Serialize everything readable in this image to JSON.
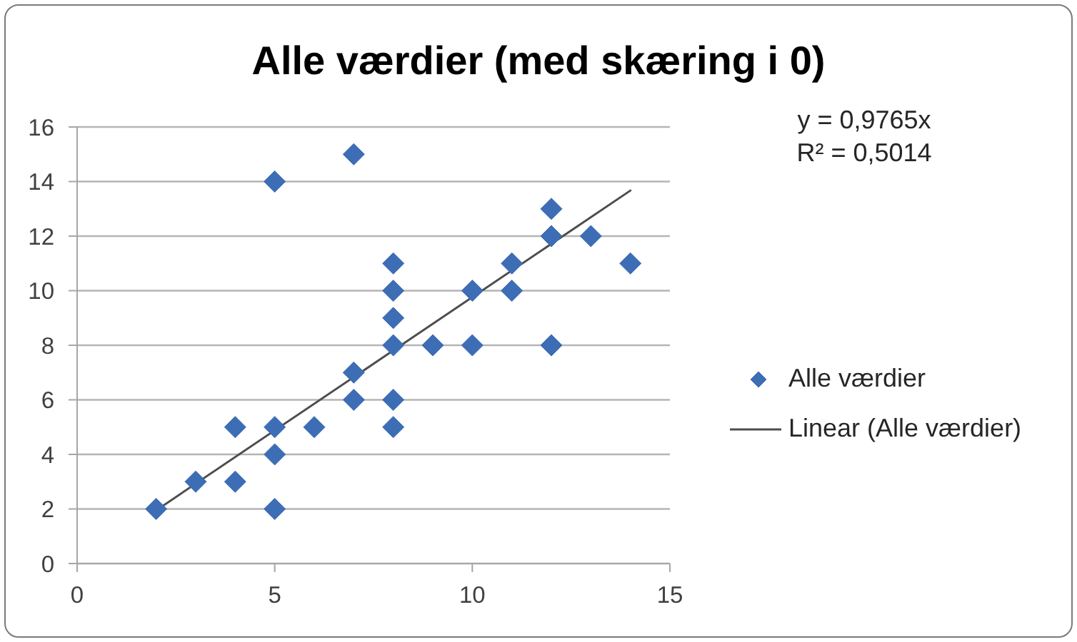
{
  "chart_data": {
    "type": "scatter",
    "title": "Alle værdier (med skæring i 0)",
    "annotations": [
      "y = 0,9765x",
      "R² = 0,5014"
    ],
    "series": [
      {
        "name": "Alle værdier",
        "marker": "diamond",
        "color": "#3d6db5",
        "x": [
          2,
          3,
          4,
          4,
          5,
          5,
          5,
          5,
          6,
          7,
          7,
          7,
          8,
          8,
          8,
          8,
          8,
          8,
          9,
          10,
          10,
          11,
          11,
          12,
          12,
          12,
          13,
          14
        ],
        "values": [
          2,
          3,
          3,
          5,
          14,
          5,
          4,
          2,
          5,
          15,
          7,
          6,
          11,
          10,
          9,
          8,
          6,
          5,
          8,
          10,
          8,
          11,
          10,
          13,
          12,
          8,
          12,
          11
        ]
      },
      {
        "name": "Linear (Alle værdier)",
        "type": "line",
        "marker": "none",
        "color": "#4d4d4d",
        "x": [
          2,
          14
        ],
        "values": [
          1.95,
          13.67
        ]
      }
    ],
    "xlim": [
      0,
      15
    ],
    "xticks": [
      0,
      5,
      10,
      15
    ],
    "ylim": [
      0,
      16
    ],
    "yticks": [
      0,
      2,
      4,
      6,
      8,
      10,
      12,
      14,
      16
    ],
    "grid": "y",
    "legend": "right"
  }
}
